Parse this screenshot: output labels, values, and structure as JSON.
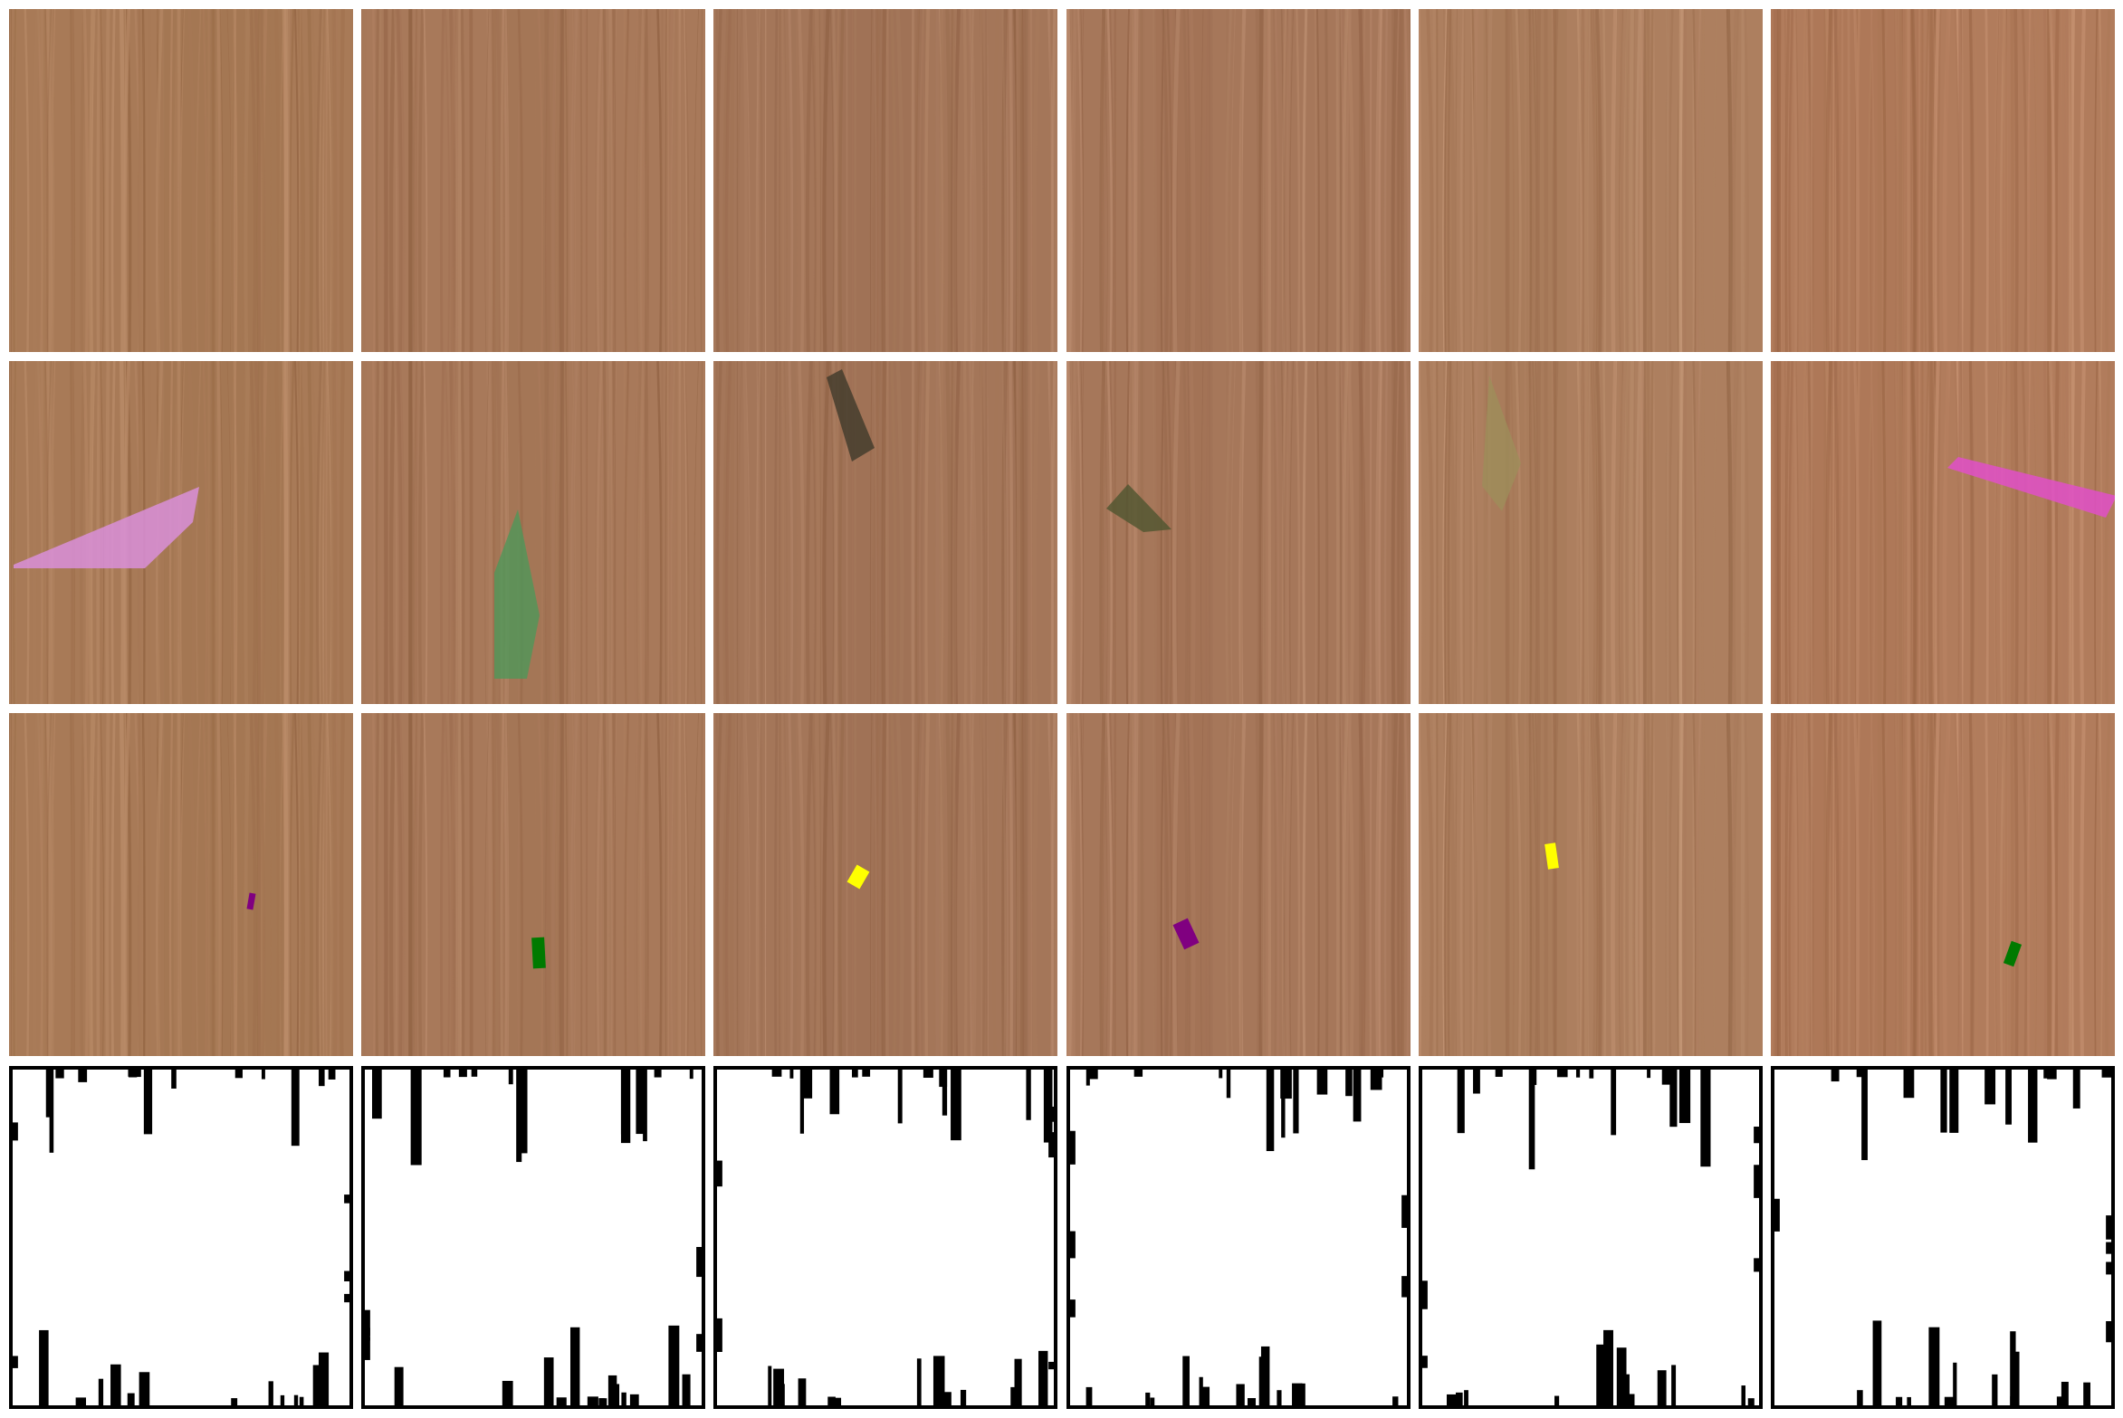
{
  "figure": {
    "rows": [
      {
        "row": "clean-wood",
        "tiles": [
          {
            "wood": "#a87a57",
            "overlay": null
          },
          {
            "wood": "#a8795a",
            "overlay": null
          },
          {
            "wood": "#a47659",
            "overlay": null
          },
          {
            "wood": "#a6775a",
            "overlay": null
          },
          {
            "wood": "#ad7f5f",
            "overlay": null
          },
          {
            "wood": "#b17c5c",
            "overlay": null
          }
        ]
      },
      {
        "row": "large-defects",
        "tiles": [
          {
            "wood": "#a87a57",
            "overlay": {
              "shape": "polygon",
              "color": "#d98fd9",
              "opacity": 0.85
            }
          },
          {
            "wood": "#a8795a",
            "overlay": {
              "shape": "polygon",
              "color": "#4a9a5a",
              "opacity": 0.75
            }
          },
          {
            "wood": "#a47659",
            "overlay": {
              "shape": "polygon",
              "color": "#3e3a2a",
              "opacity": 0.8
            }
          },
          {
            "wood": "#a6775a",
            "overlay": {
              "shape": "polygon",
              "color": "#4f5530",
              "opacity": 0.8
            }
          },
          {
            "wood": "#ad7f5f",
            "overlay": {
              "shape": "polygon",
              "color": "#9e8d5a",
              "opacity": 0.8
            }
          },
          {
            "wood": "#b17c5c",
            "overlay": {
              "shape": "polygon",
              "color": "#e050c8",
              "opacity": 0.85
            }
          }
        ]
      },
      {
        "row": "small-defects",
        "tiles": [
          {
            "wood": "#a87a57",
            "overlay": {
              "shape": "rect",
              "color": "#800080"
            }
          },
          {
            "wood": "#a8795a",
            "overlay": {
              "shape": "rect",
              "color": "#007a00"
            }
          },
          {
            "wood": "#a47659",
            "overlay": {
              "shape": "rect",
              "color": "#ffff00"
            }
          },
          {
            "wood": "#a6775a",
            "overlay": {
              "shape": "rect",
              "color": "#800080"
            }
          },
          {
            "wood": "#ad7f5f",
            "overlay": {
              "shape": "rect",
              "color": "#ffff00"
            }
          },
          {
            "wood": "#b17c5c",
            "overlay": {
              "shape": "rect",
              "color": "#007a00"
            }
          }
        ]
      },
      {
        "row": "binary-masks",
        "tiles": [
          {
            "mask": true
          },
          {
            "mask": true
          },
          {
            "mask": true
          },
          {
            "mask": true
          },
          {
            "mask": true
          },
          {
            "mask": true
          }
        ]
      }
    ]
  }
}
